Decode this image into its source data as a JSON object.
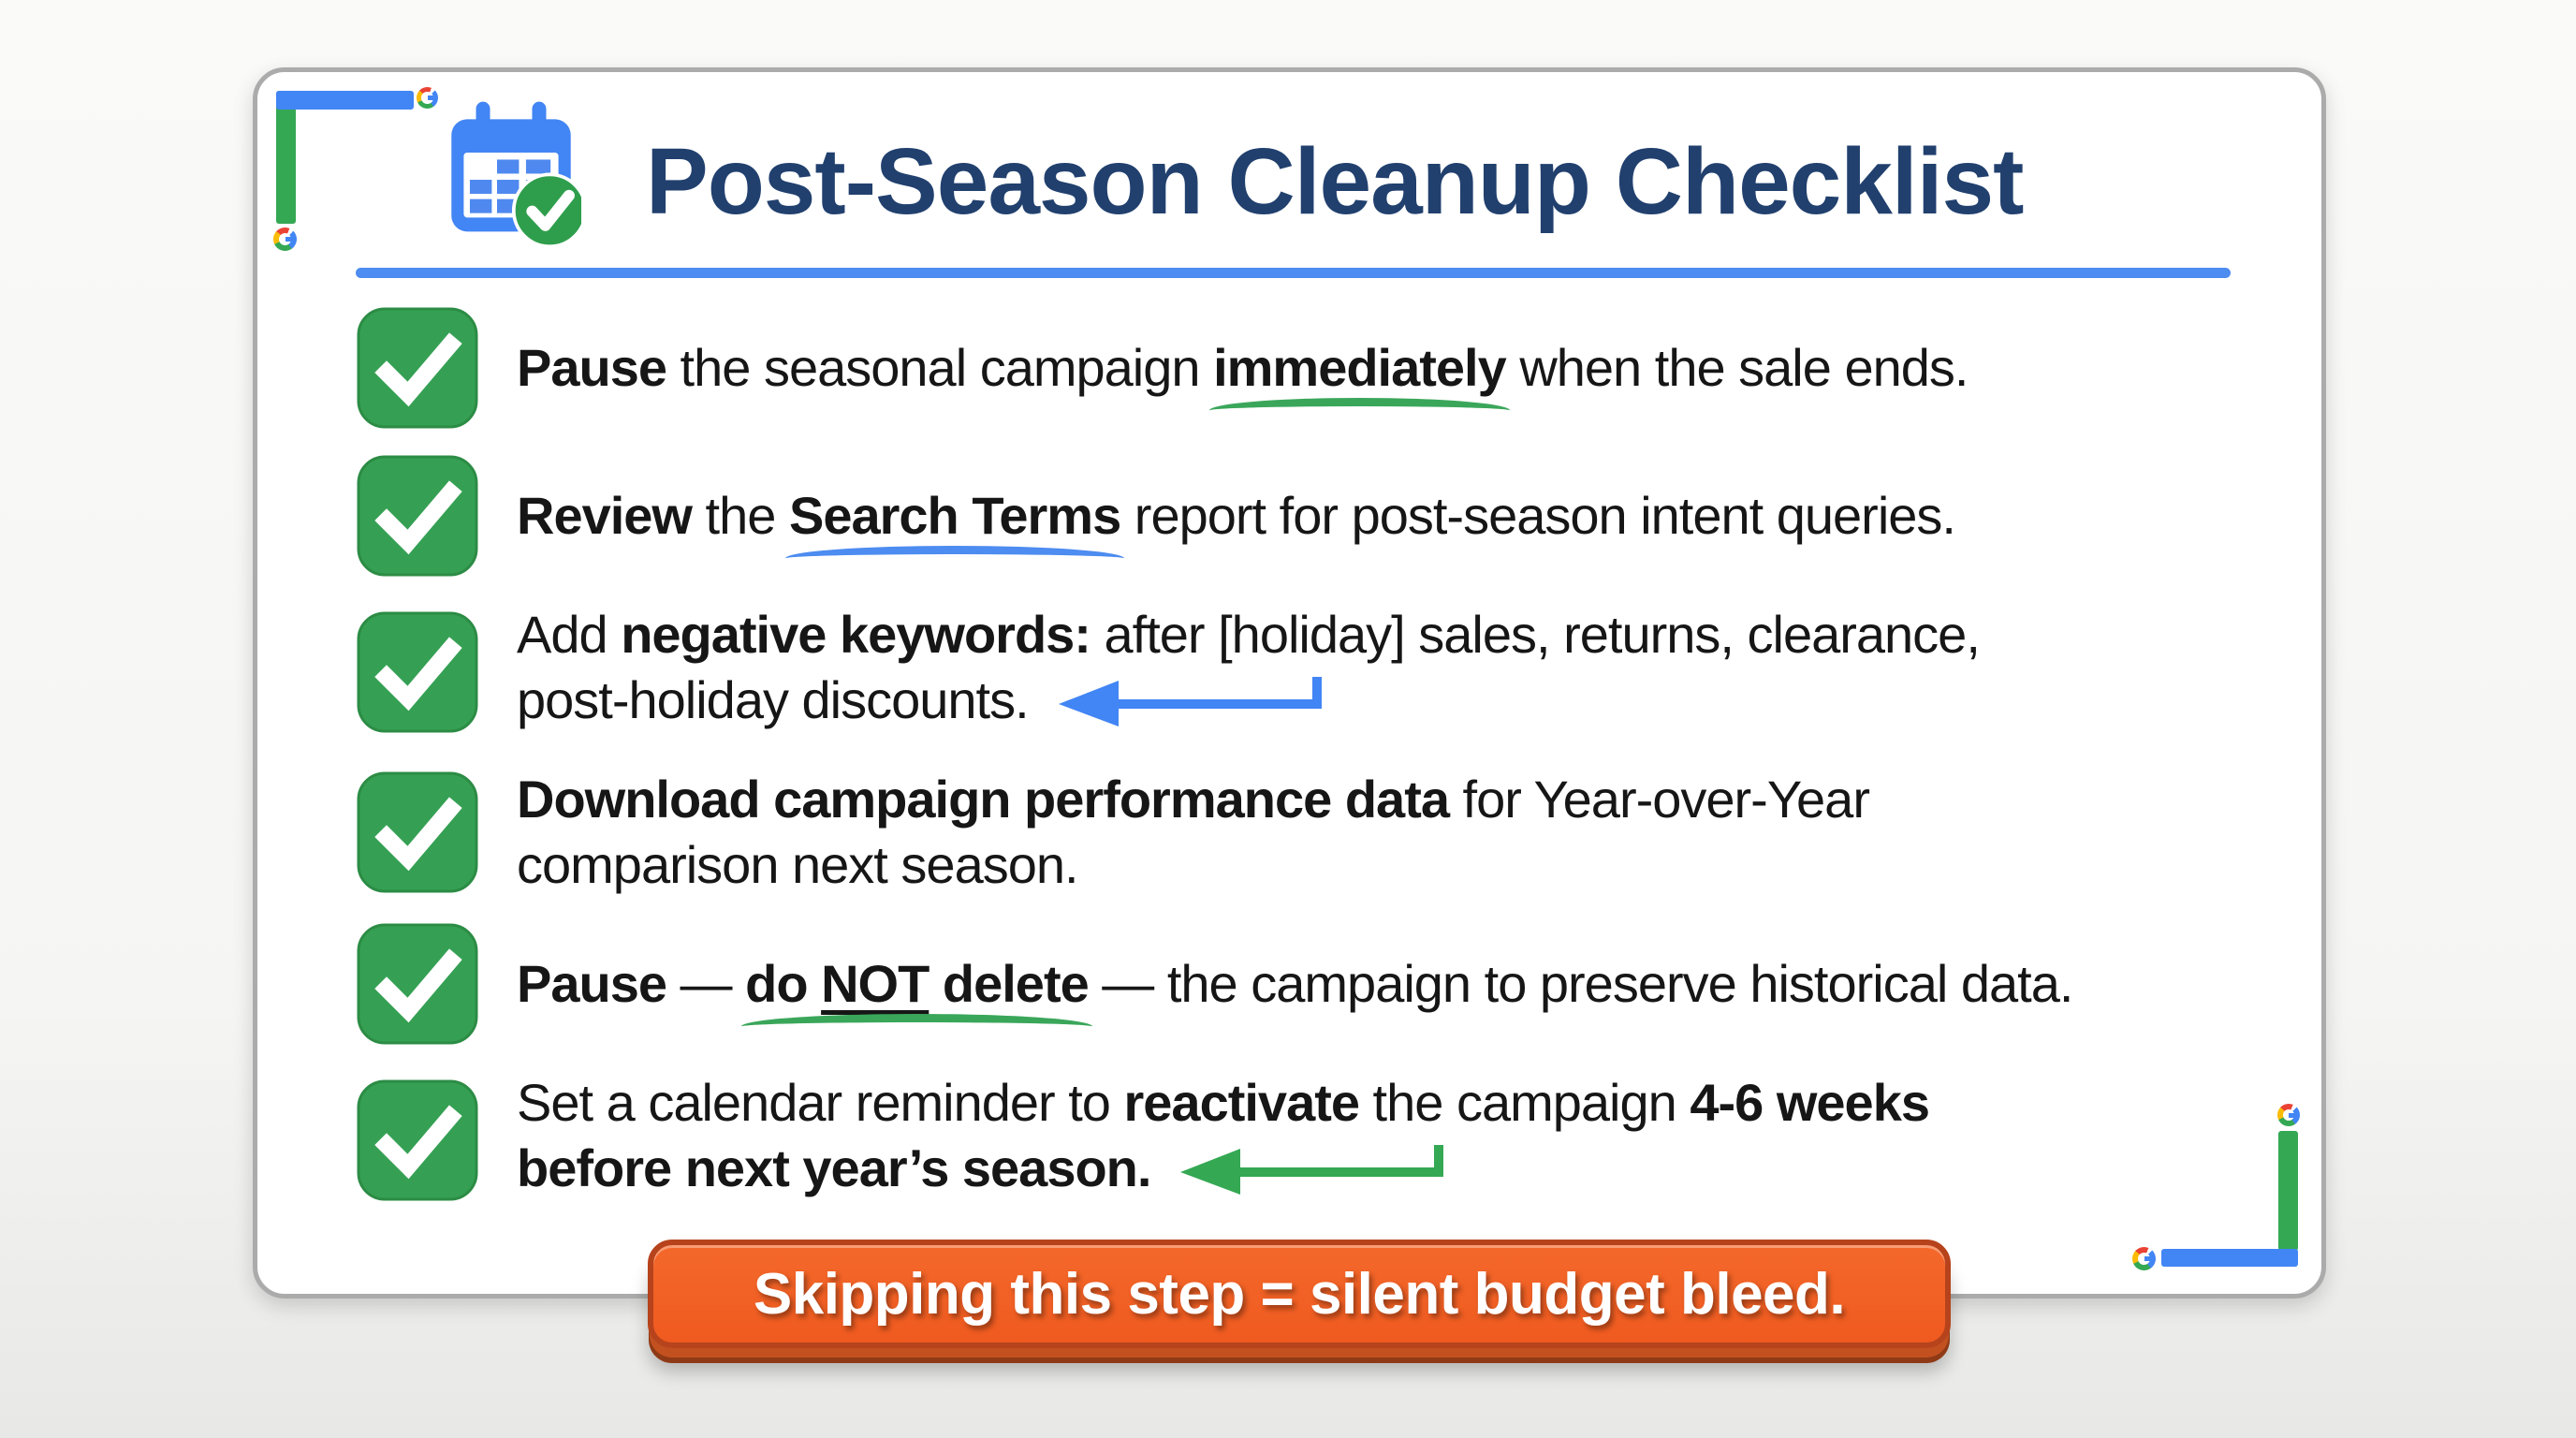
{
  "colors": {
    "navy": "#21406e",
    "blue": "#4d8cf0",
    "google_blue": "#4285f4",
    "green": "#34a853",
    "checkbox_green": "#35a053",
    "yellow": "#fbbc05",
    "red": "#ea4335",
    "orange": "#f15a22",
    "orange_dark": "#b6431c",
    "text": "#161616"
  },
  "header": {
    "title": "Post-Season Cleanup Checklist",
    "calendar_icon": "calendar-with-green-checkmark"
  },
  "branding": {
    "logo": "google-g"
  },
  "checklist": {
    "items": [
      {
        "segments": [
          {
            "t": "Pause",
            "b": true
          },
          {
            "t": " the seasonal campaign ",
            "b": false
          },
          {
            "t": "immediately",
            "b": true,
            "sw": "green"
          },
          {
            "t": " when the sale ends.",
            "b": false
          }
        ],
        "arrow": null
      },
      {
        "segments": [
          {
            "t": "Review",
            "b": true
          },
          {
            "t": " the ",
            "b": false
          },
          {
            "t": "Search Terms",
            "b": true,
            "sw": "blue"
          },
          {
            "t": " report for post-season intent queries.",
            "b": false
          }
        ],
        "arrow": null
      },
      {
        "segments": [
          {
            "t": "Add ",
            "b": false
          },
          {
            "t": "negative keywords:",
            "b": true
          },
          {
            "t": " after [holiday] sales, returns, clearance,",
            "b": false
          },
          {
            "br": true
          },
          {
            "t": "post-holiday discounts.",
            "b": false
          }
        ],
        "arrow": "blue"
      },
      {
        "segments": [
          {
            "t": "Download campaign performance data",
            "b": true
          },
          {
            "t": " for Year-over-Year",
            "b": false
          },
          {
            "br": true
          },
          {
            "t": "comparison next season.",
            "b": false
          }
        ],
        "arrow": null
      },
      {
        "segments": [
          {
            "t": "Pause",
            "b": true
          },
          {
            "t": " — ",
            "b": false
          },
          {
            "sw": "green",
            "ch": [
              {
                "t": "do ",
                "b": true
              },
              {
                "t": "NOT",
                "b": true,
                "u": true
              },
              {
                "t": " delete",
                "b": true
              }
            ]
          },
          {
            "t": " — the campaign to preserve historical data.",
            "b": false
          }
        ],
        "arrow": null
      },
      {
        "segments": [
          {
            "t": "Set a calendar reminder to ",
            "b": false
          },
          {
            "t": "reactivate",
            "b": true
          },
          {
            "t": " the campaign ",
            "b": false
          },
          {
            "t": "4-6 weeks",
            "b": true
          },
          {
            "br": true
          },
          {
            "t": "before next year’s season.",
            "b": true
          }
        ],
        "arrow": "green"
      }
    ]
  },
  "footer_banner": {
    "text": "Skipping this step = silent budget bleed."
  }
}
